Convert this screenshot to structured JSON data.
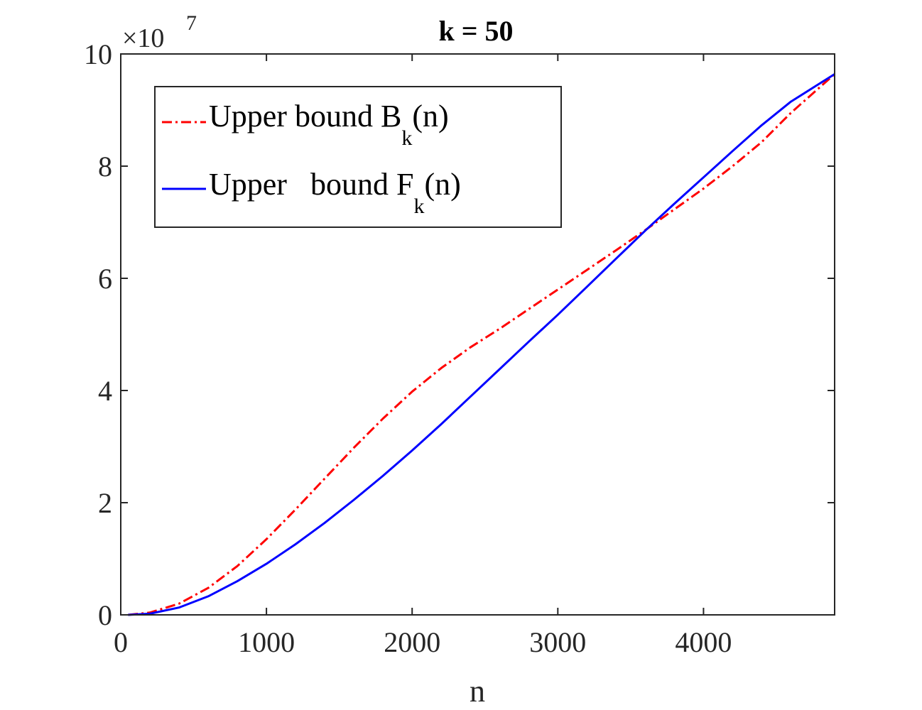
{
  "chart_data": {
    "type": "line",
    "title": "k = 50",
    "xlabel": "n",
    "ylabel": "",
    "xlim": [
      0,
      4900
    ],
    "ylim": [
      0,
      100000000
    ],
    "x_ticks": [
      0,
      1000,
      2000,
      3000,
      4000
    ],
    "x_tick_labels": [
      "0",
      "1000",
      "2000",
      "3000",
      "4000"
    ],
    "y_ticks": [
      0,
      20000000,
      40000000,
      60000000,
      80000000,
      100000000
    ],
    "y_tick_labels": [
      "0",
      "2",
      "4",
      "6",
      "8",
      "10"
    ],
    "y_exponent_label": "×10",
    "y_exponent_power": "7",
    "grid": false,
    "legend_position": "top-left",
    "legend": [
      {
        "text": "Upper bound B",
        "sub": "k",
        "suffix": "(n)"
      },
      {
        "text": "Upper   bound F",
        "sub": "k",
        "suffix": "(n)"
      }
    ],
    "series": [
      {
        "color": "#ff0000",
        "dash": "dash-dot",
        "x": [
          50,
          200,
          400,
          600,
          800,
          1000,
          1200,
          1400,
          1600,
          1800,
          2000,
          2200,
          2400,
          2600,
          2800,
          3000,
          3200,
          3400,
          3600,
          3800,
          4000,
          4200,
          4400,
          4600,
          4900
        ],
        "y": [
          0,
          400000,
          2000000,
          4800000,
          8700000,
          13500000,
          18800000,
          24300000,
          29800000,
          35000000,
          39800000,
          44000000,
          47700000,
          51000000,
          54500000,
          58000000,
          61500000,
          65000000,
          68600000,
          72300000,
          76000000,
          80000000,
          84300000,
          89500000,
          96400000
        ]
      },
      {
        "color": "#0000ff",
        "dash": "solid",
        "x": [
          50,
          200,
          400,
          600,
          800,
          1000,
          1200,
          1400,
          1600,
          1800,
          2000,
          2200,
          2400,
          2600,
          2800,
          3000,
          3200,
          3400,
          3600,
          3800,
          4000,
          4200,
          4400,
          4600,
          4900
        ],
        "y": [
          0,
          200000,
          1300000,
          3300000,
          6000000,
          9100000,
          12600000,
          16400000,
          20500000,
          24800000,
          29300000,
          34000000,
          38900000,
          43800000,
          48700000,
          53500000,
          58500000,
          63500000,
          68500000,
          73300000,
          78000000,
          82700000,
          87300000,
          91500000,
          96400000
        ]
      }
    ]
  }
}
